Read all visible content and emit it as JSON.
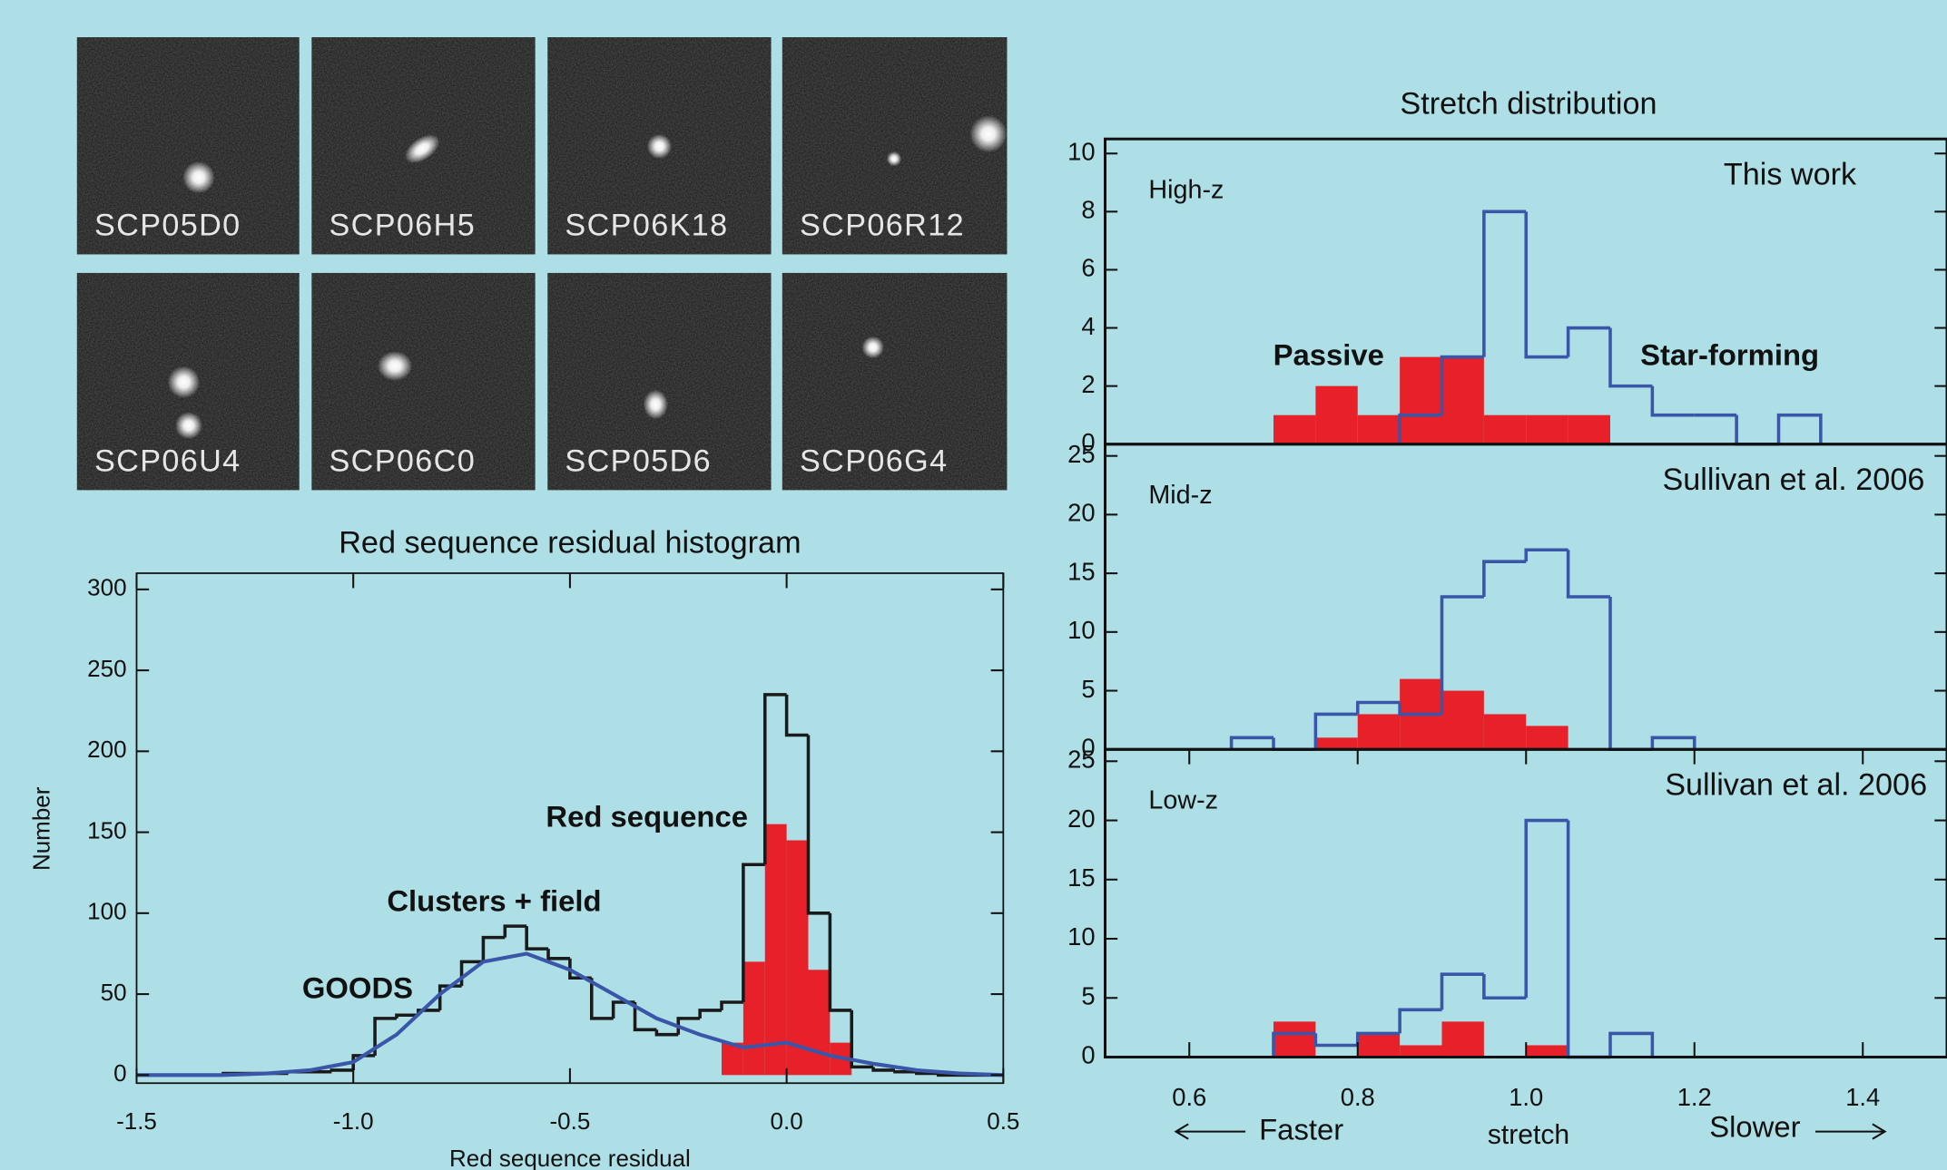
{
  "thumbnails": [
    {
      "label": "SCP05D0"
    },
    {
      "label": "SCP06H5"
    },
    {
      "label": "SCP06K18"
    },
    {
      "label": "SCP06R12"
    },
    {
      "label": "SCP06U4"
    },
    {
      "label": "SCP06C0"
    },
    {
      "label": "SCP05D6"
    },
    {
      "label": "SCP06G4"
    }
  ],
  "chart_data": [
    {
      "type": "histogram",
      "title": "Red sequence residual histogram",
      "xlabel": "Red sequence residual",
      "ylabel": "Number",
      "xlim": [
        -1.5,
        0.5
      ],
      "ylim": [
        -5,
        310
      ],
      "xticks": [
        -1.5,
        {
          "value": -1,
          "label": "-1.0"
        },
        -0.5,
        {
          "value": 0,
          "label": "0.0"
        },
        0.5
      ],
      "yticks": [
        0,
        50,
        100,
        150,
        200,
        250,
        300
      ],
      "series": [
        {
          "name": "Red sequence",
          "color": "#e8202a",
          "fill": true,
          "bins": [
            -0.15,
            -0.1,
            -0.05,
            0,
            0.05,
            0.1,
            0.15
          ],
          "values": [
            20,
            70,
            155,
            145,
            65,
            20
          ]
        },
        {
          "name": "Clusters + field",
          "color": "#1a1a1a",
          "fill": false,
          "bins": [
            -1.5,
            -1.45,
            -1.4,
            -1.35,
            -1.3,
            -1.25,
            -1.2,
            -1.15,
            -1.1,
            -1.05,
            -1,
            -0.95,
            -0.9,
            -0.85,
            -0.8,
            -0.75,
            -0.7,
            -0.65,
            -0.6,
            -0.55,
            -0.5,
            -0.45,
            -0.4,
            -0.35,
            -0.3,
            -0.25,
            -0.2,
            -0.15,
            -0.1,
            -0.05,
            0,
            0.05,
            0.1,
            0.15,
            0.2,
            0.25,
            0.3,
            0.35,
            0.4,
            0.45,
            0.5
          ],
          "values": [
            0,
            0,
            0,
            0,
            1,
            1,
            1,
            2,
            2,
            3,
            12,
            35,
            37,
            40,
            55,
            70,
            85,
            92,
            78,
            72,
            60,
            35,
            45,
            28,
            25,
            35,
            40,
            45,
            130,
            235,
            210,
            100,
            40,
            5,
            3,
            2,
            1,
            0,
            0,
            0
          ]
        },
        {
          "name": "GOODS",
          "color": "#3a56a8",
          "type": "line",
          "x": [
            -1.5,
            -1.4,
            -1.3,
            -1.2,
            -1.1,
            -1.0,
            -0.9,
            -0.8,
            -0.7,
            -0.6,
            -0.5,
            -0.4,
            -0.3,
            -0.2,
            -0.1,
            0.0,
            0.1,
            0.2,
            0.3,
            0.4,
            0.5
          ],
          "values": [
            0,
            0,
            0,
            1,
            3,
            8,
            25,
            50,
            70,
            75,
            65,
            50,
            35,
            25,
            17,
            20,
            12,
            7,
            3,
            1,
            0
          ]
        }
      ]
    },
    {
      "type": "histogram",
      "title": "Stretch distribution",
      "panel_label": "High-z",
      "source": "This work",
      "xlim": [
        0.5,
        1.5
      ],
      "ylim": [
        0,
        10.5
      ],
      "yticks": [
        0,
        2,
        4,
        6,
        8,
        10
      ],
      "series": [
        {
          "name": "Passive",
          "color": "#e8202a",
          "fill": true,
          "bins": [
            0.7,
            0.75,
            0.8,
            0.85,
            0.9,
            0.95,
            1.0,
            1.05,
            1.1
          ],
          "values": [
            1,
            2,
            1,
            3,
            3,
            1,
            1,
            1
          ]
        },
        {
          "name": "Star-forming",
          "color": "#3a56a8",
          "fill": false,
          "bins": [
            0.85,
            0.9,
            0.95,
            1.0,
            1.05,
            1.1,
            1.15,
            1.2,
            1.25,
            1.3,
            1.35
          ],
          "values": [
            1,
            3,
            8,
            3,
            4,
            2,
            1,
            1,
            0,
            1
          ]
        }
      ]
    },
    {
      "type": "histogram",
      "panel_label": "Mid-z",
      "source": "Sullivan et al. 2006",
      "xlim": [
        0.5,
        1.5
      ],
      "ylim": [
        0,
        26
      ],
      "yticks": [
        0,
        5,
        10,
        15,
        20,
        25
      ],
      "series": [
        {
          "color": "#e8202a",
          "fill": true,
          "bins": [
            0.75,
            0.8,
            0.85,
            0.9,
            0.95,
            1.0,
            1.05
          ],
          "values": [
            1,
            3,
            6,
            5,
            3,
            2
          ]
        },
        {
          "color": "#3a56a8",
          "fill": false,
          "bins": [
            0.65,
            0.7,
            0.75,
            0.8,
            0.85,
            0.9,
            0.95,
            1.0,
            1.05,
            1.1,
            1.15,
            1.2
          ],
          "values": [
            1,
            0,
            3,
            4,
            3,
            13,
            16,
            17,
            13,
            0,
            1
          ]
        }
      ]
    },
    {
      "type": "histogram",
      "panel_label": "Low-z",
      "source": "Sullivan et al. 2006",
      "xlabel": "stretch",
      "left_note": "Faster",
      "right_note": "Slower",
      "xlim": [
        0.5,
        1.5
      ],
      "ylim": [
        0,
        26
      ],
      "yticks": [
        0,
        5,
        10,
        15,
        20,
        25
      ],
      "xticks": [
        0.6,
        0.8,
        {
          "value": 1,
          "label": "1.0"
        },
        1.2,
        1.4
      ],
      "series": [
        {
          "color": "#e8202a",
          "fill": true,
          "bins": [
            0.7,
            0.75,
            0.8,
            0.85,
            0.9,
            0.95,
            1.0,
            1.05
          ],
          "values": [
            3,
            0,
            2,
            1,
            3,
            0,
            1
          ]
        },
        {
          "color": "#3a56a8",
          "fill": false,
          "bins": [
            0.7,
            0.75,
            0.8,
            0.85,
            0.9,
            0.95,
            1.0,
            1.05,
            1.1,
            1.15
          ],
          "values": [
            2,
            1,
            2,
            4,
            7,
            5,
            20,
            0,
            2
          ]
        }
      ]
    }
  ]
}
